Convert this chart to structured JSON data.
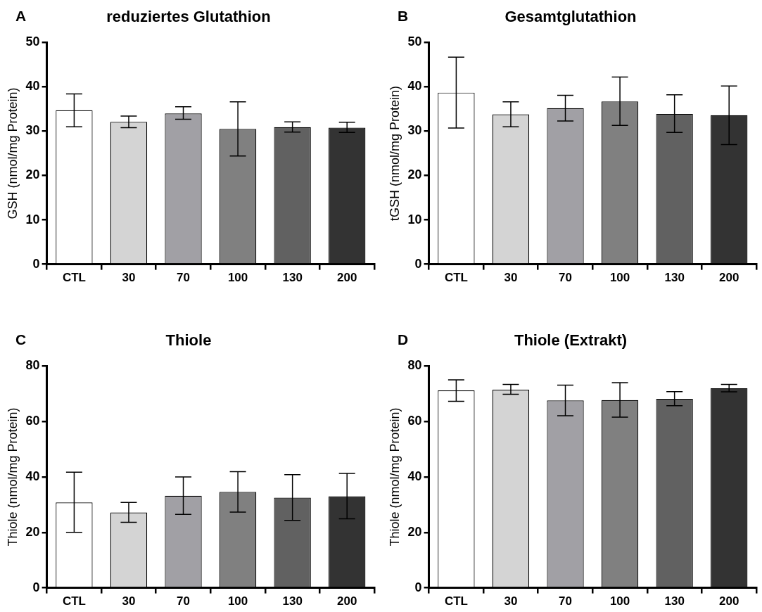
{
  "chart_data": [
    {
      "type": "bar",
      "title": "reduziertes Glutathion",
      "annotations": [
        "A"
      ],
      "ylabel": "GSH (nmol/mg Protein)",
      "categories": [
        "CTL",
        "30",
        "70",
        "100",
        "130",
        "200"
      ],
      "values": [
        34.7,
        32.1,
        34.0,
        30.5,
        30.9,
        30.8
      ],
      "colors": [
        "#ffffff",
        "#d4d4d4",
        "#a1a0a5",
        "#808080",
        "#616161",
        "#333333"
      ],
      "errors": [
        [
          31.0,
          38.4
        ],
        [
          30.8,
          33.4
        ],
        [
          32.7,
          35.5
        ],
        [
          24.4,
          36.6
        ],
        [
          29.8,
          32.1
        ],
        [
          29.7,
          32.0
        ]
      ],
      "ylim": [
        0,
        50
      ],
      "yticks": [
        0,
        10,
        20,
        30,
        40,
        50
      ],
      "grid": false,
      "legend": false
    },
    {
      "type": "bar",
      "title": "Gesamtglutathion",
      "annotations": [
        "B"
      ],
      "ylabel": "tGSH (nmol/mg Protein)",
      "categories": [
        "CTL",
        "30",
        "70",
        "100",
        "130",
        "200"
      ],
      "values": [
        38.7,
        33.8,
        35.2,
        36.7,
        33.9,
        33.6
      ],
      "colors": [
        "#ffffff",
        "#d4d4d4",
        "#a1a0a5",
        "#808080",
        "#616161",
        "#333333"
      ],
      "errors": [
        [
          30.7,
          46.7
        ],
        [
          31.0,
          36.6
        ],
        [
          32.3,
          38.1
        ],
        [
          31.3,
          42.2
        ],
        [
          29.7,
          38.2
        ],
        [
          27.0,
          40.2
        ]
      ],
      "ylim": [
        0,
        50
      ],
      "yticks": [
        0,
        10,
        20,
        30,
        40,
        50
      ],
      "grid": false,
      "legend": false
    },
    {
      "type": "bar",
      "title": "Thiole",
      "annotations": [
        "C"
      ],
      "ylabel": "Thiole (nmol/mg Protein)",
      "categories": [
        "CTL",
        "30",
        "70",
        "100",
        "130",
        "200"
      ],
      "values": [
        30.8,
        27.2,
        33.2,
        34.6,
        32.5,
        33.0
      ],
      "colors": [
        "#ffffff",
        "#d4d4d4",
        "#a1a0a5",
        "#808080",
        "#616161",
        "#333333"
      ],
      "errors": [
        [
          20.0,
          41.7
        ],
        [
          23.6,
          30.8
        ],
        [
          26.5,
          40.0
        ],
        [
          27.3,
          41.9
        ],
        [
          24.3,
          40.8
        ],
        [
          24.9,
          41.3
        ]
      ],
      "ylim": [
        0,
        80
      ],
      "yticks": [
        0,
        20,
        40,
        60,
        80
      ],
      "grid": false,
      "legend": false
    },
    {
      "type": "bar",
      "title": "Thiole (Extrakt)",
      "annotations": [
        "D"
      ],
      "ylabel": "Thiole (nmol/mg Protein)",
      "categories": [
        "CTL",
        "30",
        "70",
        "100",
        "130",
        "200"
      ],
      "values": [
        71.2,
        71.5,
        67.6,
        67.7,
        68.2,
        72.0
      ],
      "colors": [
        "#ffffff",
        "#d4d4d4",
        "#a1a0a5",
        "#808080",
        "#616161",
        "#333333"
      ],
      "errors": [
        [
          67.3,
          75.0
        ],
        [
          69.8,
          73.4
        ],
        [
          62.1,
          73.1
        ],
        [
          61.6,
          74.0
        ],
        [
          65.7,
          70.8
        ],
        [
          70.7,
          73.4
        ]
      ],
      "ylim": [
        0,
        80
      ],
      "yticks": [
        0,
        20,
        40,
        60,
        80
      ],
      "grid": false,
      "legend": false
    }
  ]
}
